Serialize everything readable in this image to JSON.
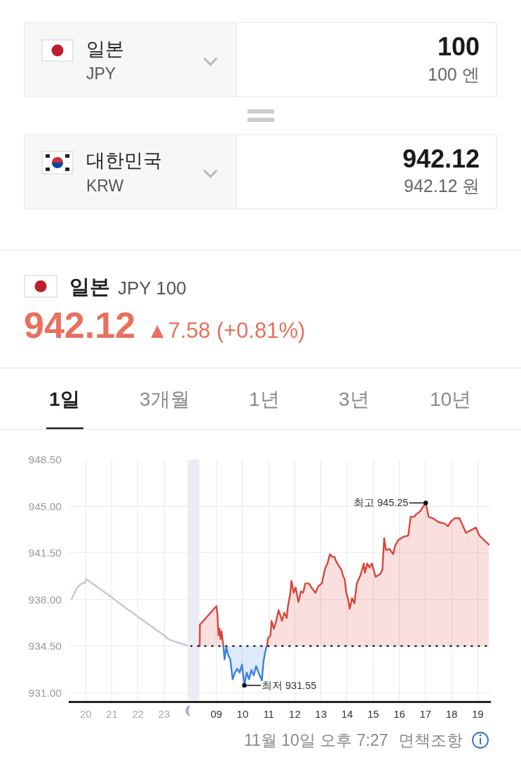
{
  "chart_data": [
    {
      "type": "line",
      "title": "일본",
      "subtitle": "JPY 100",
      "annotations": [
        "일본",
        "JPY",
        "100",
        "100 엔",
        "대한민국",
        "KRW",
        "942.12",
        "942.12 원",
        "942.12",
        "▲7.58 (+0.81%)",
        "1일",
        "3개월",
        "1년",
        "3년",
        "10년",
        "11월 10일 오후 7:27",
        "면책조항"
      ],
      "series": [
        {
          "type": "line",
          "color": "#c6c6d9",
          "x": [
            19.46,
            19.55,
            19.65,
            19.75,
            19.85,
            19.93,
            19.98,
            20.01,
            20.5,
            21.0,
            21.5,
            22.0,
            22.5,
            23.0,
            23.17,
            23.53,
            23.88
          ],
          "values": [
            938.0,
            938.4,
            938.8,
            939.05,
            939.2,
            939.25,
            939.25,
            939.55,
            938.85,
            938.15,
            937.4,
            936.7,
            936.0,
            935.3,
            935.0,
            934.75,
            934.55
          ]
        }
      ],
      "xlim": [
        19.35,
        24.0
      ],
      "ylim": [
        930.4,
        948.5
      ],
      "xticks": [
        20,
        21,
        22,
        23
      ],
      "yticks": [
        {
          "value": 931,
          "label": "931.00"
        },
        {
          "value": 934.5,
          "label": "934.50"
        },
        {
          "value": 938,
          "label": "938.00"
        },
        {
          "value": 941.5,
          "label": "941.50"
        },
        {
          "value": 945,
          "label": "945.00"
        },
        {
          "value": 948.5,
          "label": "948.50"
        }
      ],
      "grid": true,
      "bands": [
        {
          "axis": "x",
          "from": 23.9,
          "to": 24.0,
          "color": "#ebebf5"
        }
      ]
    },
    {
      "type": "line",
      "annotations": [
        {
          "text": "최고 945.25",
          "x": 17.01,
          "y": 945.25
        },
        {
          "text": "최저 931.55",
          "x": 10.07,
          "y": 931.55
        }
      ],
      "series": [
        {
          "type": "area",
          "color": "#d9463b",
          "x": [
            8.36,
            8.37,
            9.0,
            9.04,
            9.08,
            9.12,
            9.16,
            9.2,
            9.24,
            9.27,
            9.6,
            10.93,
            10.98,
            11.07,
            11.11,
            11.2,
            11.29,
            11.38,
            11.51,
            11.6,
            11.69,
            11.73,
            11.83,
            11.87,
            11.96,
            12.03,
            12.14,
            12.23,
            12.32,
            12.4,
            12.54,
            12.67,
            12.79,
            12.9,
            13.03,
            13.17,
            13.25,
            13.34,
            13.43,
            13.52,
            13.57,
            13.66,
            13.79,
            13.84,
            13.91,
            13.97,
            14.03,
            14.1,
            14.19,
            14.28,
            14.37,
            14.51,
            14.64,
            14.68,
            14.77,
            14.86,
            14.95,
            15.09,
            15.18,
            15.26,
            15.35,
            15.42,
            15.49,
            15.62,
            15.76,
            15.85,
            15.98,
            16.16,
            16.34,
            16.43,
            16.56,
            16.65,
            16.79,
            17.01,
            17.12,
            17.28,
            17.5,
            17.72,
            17.86,
            17.99,
            18.13,
            18.3,
            18.55,
            18.93,
            19.06,
            19.42
          ],
          "values": [
            934.5,
            936.1,
            937.5,
            936.9,
            935.3,
            935.8,
            935.0,
            935.6,
            934.9,
            934.5,
            null,
            934.5,
            935.1,
            935.3,
            936.4,
            935.8,
            936.4,
            937.2,
            936.4,
            937.0,
            936.6,
            937.4,
            938.5,
            939.4,
            938.5,
            938.9,
            937.8,
            938.6,
            938.5,
            939.2,
            939.2,
            938.8,
            938.5,
            939.0,
            939.2,
            940.4,
            940.7,
            941.4,
            941.2,
            941.2,
            940.9,
            940.6,
            940.2,
            939.8,
            939.5,
            938.5,
            938.1,
            937.3,
            938.1,
            937.7,
            939.2,
            939.8,
            940.7,
            940.0,
            940.7,
            940.4,
            940.7,
            939.7,
            939.8,
            939.9,
            940.2,
            942.6,
            941.7,
            941.8,
            941.4,
            942.1,
            942.5,
            942.7,
            942.8,
            944.2,
            944.2,
            944.4,
            944.6,
            945.25,
            944.2,
            944.1,
            943.8,
            943.7,
            943.5,
            943.9,
            944.1,
            944.1,
            943.0,
            943.4,
            942.8,
            942.12
          ]
        },
        {
          "type": "area",
          "color": "#3a7fe0",
          "x": [
            9.27,
            9.31,
            9.38,
            9.44,
            9.53,
            9.62,
            9.71,
            9.8,
            9.89,
            9.98,
            10.07,
            10.16,
            10.25,
            10.34,
            10.43,
            10.52,
            10.61,
            10.68,
            10.74,
            10.8,
            10.86,
            10.93
          ],
          "values": [
            934.5,
            933.5,
            934.4,
            933.9,
            933.5,
            932.0,
            932.5,
            932.8,
            932.5,
            933.1,
            931.55,
            932.5,
            932.0,
            932.7,
            932.3,
            933.0,
            932.5,
            932.2,
            931.9,
            933.3,
            934.0,
            934.5
          ]
        }
      ],
      "xlim": [
        8.0,
        19.5
      ],
      "ylim": [
        930.4,
        948.5
      ],
      "xticks": [
        {
          "value": 9,
          "label": "09"
        },
        10,
        11,
        12,
        13,
        14,
        15,
        16,
        17,
        18,
        19
      ],
      "yticks": [
        931,
        934.5,
        938,
        941.5,
        945,
        948.5
      ],
      "tick_labels": "x",
      "grid": true,
      "ref_lines": [
        {
          "axis": "y",
          "value": 934.5,
          "color": "#222222",
          "line_style": "dotted"
        }
      ],
      "bands": [
        {
          "axis": "x",
          "from": 8.0,
          "to": 8.35,
          "color": "#ebebf5"
        }
      ]
    }
  ]
}
